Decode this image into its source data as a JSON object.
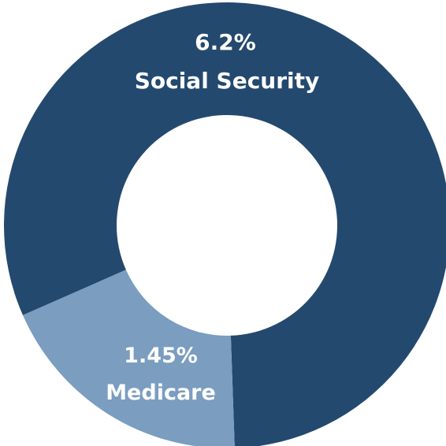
{
  "chart_data": {
    "type": "pie",
    "donut": true,
    "categories": [
      "Social Security",
      "Medicare"
    ],
    "values": [
      6.2,
      1.45
    ],
    "value_labels": [
      "6.2%",
      "1.45%"
    ],
    "colors": [
      "#24496E",
      "#7A9DC0"
    ],
    "legend": "none"
  }
}
